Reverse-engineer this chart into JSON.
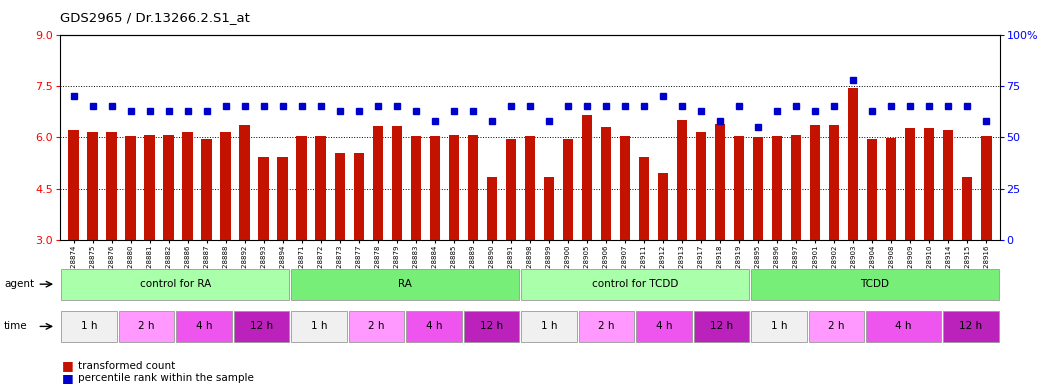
{
  "title": "GDS2965 / Dr.13266.2.S1_at",
  "samples": [
    "GSM228874",
    "GSM228875",
    "GSM228876",
    "GSM228880",
    "GSM228881",
    "GSM228882",
    "GSM228886",
    "GSM228887",
    "GSM228888",
    "GSM228892",
    "GSM228893",
    "GSM228894",
    "GSM228871",
    "GSM228872",
    "GSM228873",
    "GSM228877",
    "GSM228878",
    "GSM228879",
    "GSM228883",
    "GSM228884",
    "GSM228885",
    "GSM228889",
    "GSM228890",
    "GSM228891",
    "GSM228898",
    "GSM228899",
    "GSM228900",
    "GSM228905",
    "GSM228906",
    "GSM228907",
    "GSM228911",
    "GSM228912",
    "GSM228913",
    "GSM228917",
    "GSM228918",
    "GSM228919",
    "GSM228895",
    "GSM228896",
    "GSM228897",
    "GSM228901",
    "GSM228902",
    "GSM228903",
    "GSM228904",
    "GSM228908",
    "GSM228909",
    "GSM228910",
    "GSM228914",
    "GSM228915",
    "GSM228916"
  ],
  "bar_values": [
    6.2,
    6.15,
    6.15,
    6.05,
    6.08,
    6.08,
    6.15,
    5.95,
    6.15,
    6.35,
    5.42,
    5.42,
    6.05,
    6.05,
    5.55,
    5.55,
    6.32,
    6.32,
    6.05,
    6.05,
    6.08,
    6.08,
    4.85,
    5.95,
    6.05,
    4.85,
    5.95,
    6.65,
    6.3,
    6.05,
    5.42,
    4.95,
    6.5,
    6.15,
    6.4,
    6.05,
    6.02,
    6.05,
    6.08,
    6.35,
    6.35,
    7.45,
    5.95,
    5.98,
    6.28,
    6.28,
    6.22,
    4.85,
    6.05
  ],
  "dot_values": [
    70,
    65,
    65,
    63,
    63,
    63,
    63,
    63,
    65,
    65,
    65,
    65,
    65,
    65,
    63,
    63,
    65,
    65,
    63,
    58,
    63,
    63,
    58,
    65,
    65,
    58,
    65,
    65,
    65,
    65,
    65,
    70,
    65,
    63,
    58,
    65,
    55,
    63,
    65,
    63,
    65,
    78,
    63,
    65,
    65,
    65,
    65,
    65,
    58
  ],
  "ylim_left": [
    3.0,
    9.0
  ],
  "ylim_right": [
    0,
    100
  ],
  "yticks_left": [
    3,
    4.5,
    6.0,
    7.5,
    9
  ],
  "yticks_right": [
    0,
    25,
    50,
    75,
    100
  ],
  "bar_color": "#C41200",
  "dot_color": "#0000CC",
  "agent_labels": [
    "control for RA",
    "RA",
    "control for TCDD",
    "TCDD"
  ],
  "agent_starts": [
    0,
    12,
    24,
    36
  ],
  "agent_ends": [
    12,
    24,
    36,
    49
  ],
  "agent_colors": [
    "#AAFFAA",
    "#77EE77",
    "#AAFFAA",
    "#77EE77"
  ],
  "time_labels": [
    "1 h",
    "2 h",
    "4 h",
    "12 h",
    "1 h",
    "2 h",
    "4 h",
    "12 h",
    "1 h",
    "2 h",
    "4 h",
    "12 h",
    "1 h",
    "2 h",
    "4 h",
    "12 h"
  ],
  "time_starts": [
    0,
    3,
    6,
    9,
    12,
    15,
    18,
    21,
    24,
    27,
    30,
    33,
    36,
    39,
    42,
    46
  ],
  "time_ends": [
    3,
    6,
    9,
    12,
    15,
    18,
    21,
    24,
    27,
    30,
    33,
    36,
    39,
    42,
    46,
    49
  ],
  "time_colors": [
    "#F0F0F0",
    "#FF99FF",
    "#EE55EE",
    "#BB22BB",
    "#F0F0F0",
    "#FF99FF",
    "#EE55EE",
    "#BB22BB",
    "#F0F0F0",
    "#FF99FF",
    "#EE55EE",
    "#BB22BB",
    "#F0F0F0",
    "#FF99FF",
    "#EE55EE",
    "#BB22BB"
  ]
}
